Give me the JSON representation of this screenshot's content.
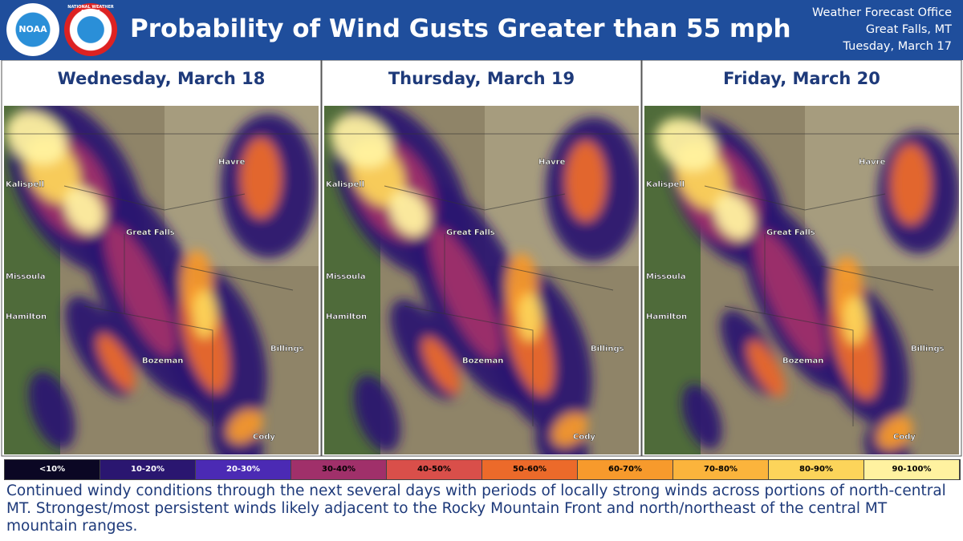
{
  "header": {
    "title": "Probability of Wind Gusts Greater than 55 mph",
    "logos": [
      "NOAA",
      "NATIONAL WEATHER SERVICE"
    ],
    "office": [
      "Weather Forecast Office",
      "Great Falls, MT",
      "Tuesday, March 17"
    ]
  },
  "panels": [
    {
      "day": "Wednesday, March 18",
      "cities": [
        "Havre",
        "Kalispell",
        "Great Falls",
        "Missoula",
        "Hamilton",
        "Bozeman",
        "Billings",
        "Cody"
      ]
    },
    {
      "day": "Thursday, March 19",
      "cities": [
        "Havre",
        "Kalispell",
        "Great Falls",
        "Missoula",
        "Hamilton",
        "Bozeman",
        "Billings",
        "Cody"
      ]
    },
    {
      "day": "Friday, March 20",
      "cities": [
        "Havre",
        "Kalispell",
        "Great Falls",
        "Missoula",
        "Hamilton",
        "Bozeman",
        "Billings",
        "Cody"
      ]
    }
  ],
  "legend": [
    {
      "label": "<10%",
      "color": "#0b0724"
    },
    {
      "label": "10-20%",
      "color": "#2a1670"
    },
    {
      "label": "20-30%",
      "color": "#4b2ab4"
    },
    {
      "label": "30-40%",
      "color": "#a0306a"
    },
    {
      "label": "40-50%",
      "color": "#d94f4a"
    },
    {
      "label": "50-60%",
      "color": "#ec6a2a"
    },
    {
      "label": "60-70%",
      "color": "#f79a2c"
    },
    {
      "label": "70-80%",
      "color": "#fbb43c"
    },
    {
      "label": "80-90%",
      "color": "#fcd45a"
    },
    {
      "label": "90-100%",
      "color": "#fff2a0"
    }
  ],
  "caption": "Continued windy conditions through the next several days with periods of locally strong winds across portions of north-central MT. Strongest/most persistent winds likely adjacent to the Rocky Mountain Front and north/northeast of the central MT mountain ranges."
}
